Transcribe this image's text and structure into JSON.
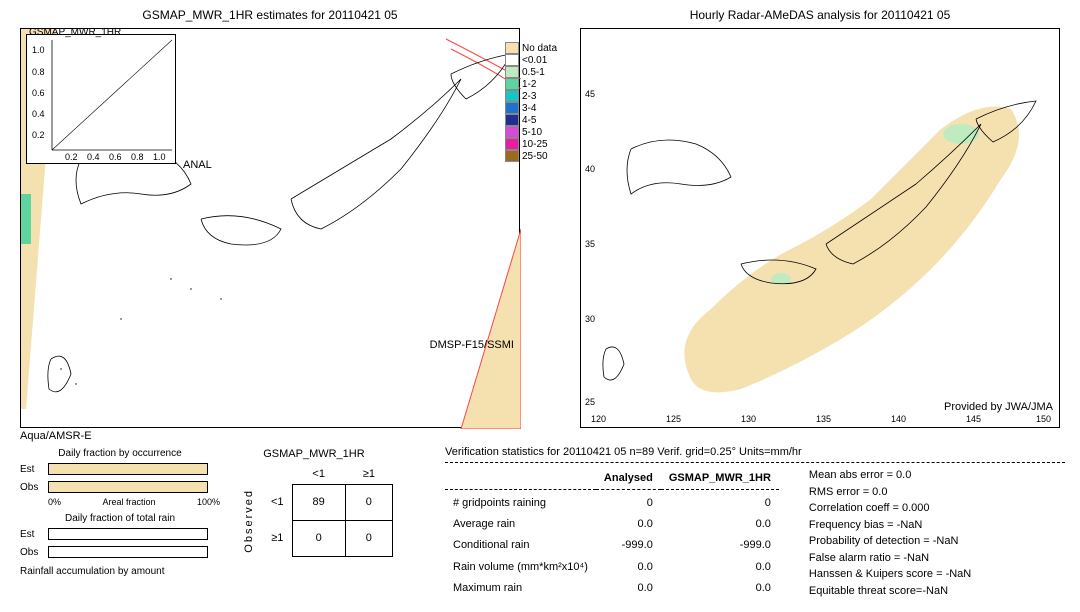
{
  "left_map": {
    "title": "GSMAP_MWR_1HR estimates for 20110421 05",
    "inset_label": "GSMAP_MWR_1HR",
    "anal_label": "ANAL",
    "satellite_label": "DMSP-F15/SSMI",
    "bottom_label": "Aqua/AMSR-E",
    "inset_xticks": [
      "0.2",
      "0.4",
      "0.6",
      "0.8",
      "1.0"
    ],
    "inset_yticks": [
      "0.2",
      "0.4",
      "0.6",
      "0.8",
      "1.0"
    ],
    "border_color": "#000000",
    "coastline_color": "#000000",
    "swath_fill": "#f5e0b0",
    "swath_edge": "#ff4444",
    "data_patch": "#5dd5a0"
  },
  "right_map": {
    "title": "Hourly Radar-AMeDAS analysis for 20110421 05",
    "attribution": "Provided by JWA/JMA",
    "lat_ticks": [
      "25",
      "30",
      "35",
      "40",
      "45"
    ],
    "lon_ticks": [
      "120",
      "125",
      "130",
      "135",
      "140",
      "145",
      "150"
    ],
    "coverage_fill": "#f5e0b0",
    "light_rain": "#c0ebc0"
  },
  "legend": {
    "items": [
      {
        "label": "No data",
        "color": "#f5e0b0"
      },
      {
        "label": "<0.01",
        "color": "#ffffff"
      },
      {
        "label": "0.5-1",
        "color": "#c0ebc0"
      },
      {
        "label": "1-2",
        "color": "#5dd5a0"
      },
      {
        "label": "2-3",
        "color": "#18c4c4"
      },
      {
        "label": "3-4",
        "color": "#2070d0"
      },
      {
        "label": "4-5",
        "color": "#203090"
      },
      {
        "label": "5-10",
        "color": "#d849d8"
      },
      {
        "label": "10-25",
        "color": "#e81ea0"
      },
      {
        "label": "25-50",
        "color": "#9a6a20"
      }
    ]
  },
  "fraction_panel": {
    "title1": "Daily fraction by occurrence",
    "title2": "Daily fraction of total rain",
    "title3": "Rainfall accumulation by amount",
    "row_labels": [
      "Est",
      "Obs"
    ],
    "xlabel": "Areal fraction",
    "xmin": "0%",
    "xmax": "100%",
    "bar_color": "#f5e0b0",
    "est_fill_pct": 100,
    "obs_fill_pct": 100
  },
  "contingency": {
    "header": "GSMAP_MWR_1HR",
    "col_labels": [
      "<1",
      "≥1"
    ],
    "row_labels": [
      "<1",
      "≥1"
    ],
    "side_label": "Observed",
    "cells": [
      [
        89,
        0
      ],
      [
        0,
        0
      ]
    ]
  },
  "verification": {
    "title": "Verification statistics for 20110421 05  n=89  Verif. grid=0.25°  Units=mm/hr",
    "col_headers": [
      "Analysed",
      "GSMAP_MWR_1HR"
    ],
    "rows": [
      {
        "label": "# gridpoints raining",
        "a": "0",
        "b": "0"
      },
      {
        "label": "Average rain",
        "a": "0.0",
        "b": "0.0"
      },
      {
        "label": "Conditional rain",
        "a": "-999.0",
        "b": "-999.0"
      },
      {
        "label": "Rain volume (mm*km²x10⁴)",
        "a": "0.0",
        "b": "0.0"
      },
      {
        "label": "Maximum rain",
        "a": "0.0",
        "b": "0.0"
      }
    ],
    "metrics": [
      {
        "label": "Mean abs error",
        "value": "0.0"
      },
      {
        "label": "RMS error",
        "value": "0.0"
      },
      {
        "label": "Correlation coeff",
        "value": "0.000"
      },
      {
        "label": "Frequency bias",
        "value": "-NaN"
      },
      {
        "label": "Probability of detection",
        "value": "-NaN"
      },
      {
        "label": "False alarm ratio",
        "value": "-NaN"
      },
      {
        "label": "Hanssen & Kuipers score",
        "value": "-NaN"
      },
      {
        "label": "Equitable threat score=",
        "value": "-NaN"
      }
    ]
  }
}
